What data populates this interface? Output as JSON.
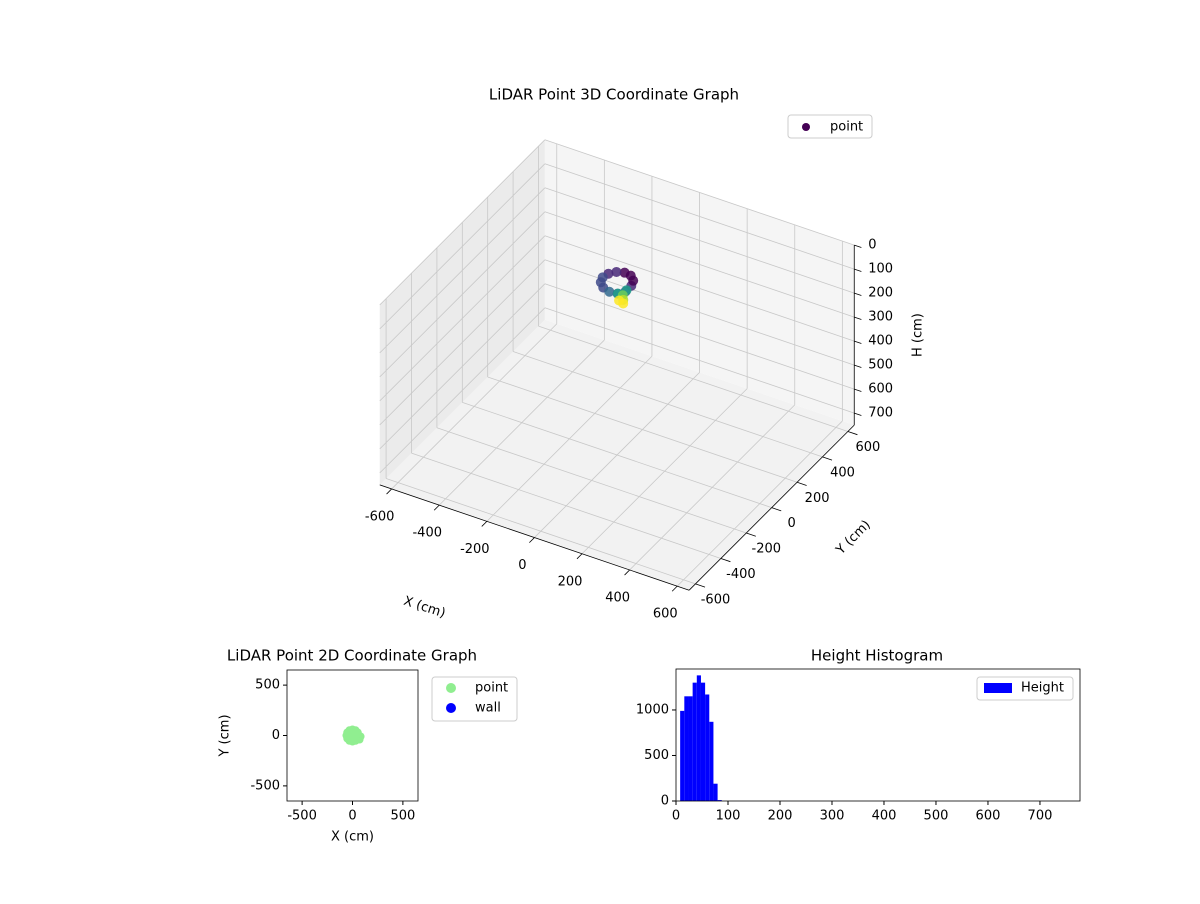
{
  "chart_data": [
    {
      "type": "scatter3d",
      "title": "LiDAR Point 3D Coordinate Graph",
      "xlabel": "X (cm)",
      "ylabel": "Y (cm)",
      "zlabel": "H (cm)",
      "xlim": [
        -650,
        650
      ],
      "ylim": [
        -650,
        650
      ],
      "zlim": [
        0,
        750
      ],
      "z_inverted": true,
      "xticks": [
        -600,
        -400,
        -200,
        0,
        200,
        400,
        600
      ],
      "yticks": [
        -600,
        -400,
        -200,
        0,
        200,
        400,
        600
      ],
      "zticks": [
        0,
        100,
        200,
        300,
        400,
        500,
        600,
        700
      ],
      "grid": true,
      "colormap": "viridis",
      "legend": "upper right",
      "series": [
        {
          "name": "point",
          "color": "#440154",
          "x": [
            60,
            52,
            30,
            0,
            -30,
            -52,
            -60,
            -52,
            -30,
            0,
            30,
            52,
            40,
            20,
            35,
            45,
            50,
            30
          ],
          "y": [
            0,
            30,
            52,
            60,
            52,
            30,
            0,
            -30,
            -52,
            -60,
            -52,
            -30,
            0,
            -30,
            -20,
            -35,
            -45,
            -40
          ],
          "z": [
            25,
            22,
            20,
            22,
            25,
            28,
            30,
            32,
            35,
            38,
            40,
            35,
            50,
            55,
            62,
            70,
            78,
            75
          ]
        }
      ]
    },
    {
      "type": "scatter",
      "title": "LiDAR Point 2D Coordinate Graph",
      "xlabel": "X (cm)",
      "ylabel": "Y (cm)",
      "xlim": [
        -650,
        650
      ],
      "ylim": [
        -650,
        650
      ],
      "xticks": [
        -500,
        0,
        500
      ],
      "yticks": [
        -500,
        0,
        500
      ],
      "legend": "outside right",
      "series": [
        {
          "name": "point",
          "color": "#90ee90",
          "x": [
            60,
            52,
            30,
            0,
            -30,
            -52,
            -60,
            -52,
            -30,
            0,
            30,
            52,
            80,
            70,
            20,
            0,
            30,
            -20,
            10,
            45
          ],
          "y": [
            0,
            30,
            52,
            60,
            52,
            30,
            0,
            -30,
            -52,
            -60,
            -52,
            -30,
            -10,
            -40,
            20,
            0,
            -20,
            -10,
            30,
            10
          ]
        },
        {
          "name": "wall",
          "color": "#0000ff",
          "x": [],
          "y": []
        }
      ]
    },
    {
      "type": "histogram",
      "title": "Height Histogram",
      "name": "Height",
      "color": "#0000ff",
      "bins": [
        8,
        16,
        24,
        32,
        40,
        48,
        56,
        64,
        72,
        80,
        88
      ],
      "values": [
        990,
        1150,
        1150,
        1300,
        1380,
        1300,
        1170,
        870,
        190,
        10
      ],
      "xlim": [
        0,
        777
      ],
      "ylim": [
        0,
        1450
      ],
      "xticks": [
        0,
        100,
        200,
        300,
        400,
        500,
        600,
        700
      ],
      "yticks": [
        0,
        500,
        1000
      ],
      "legend": "upper right"
    }
  ]
}
